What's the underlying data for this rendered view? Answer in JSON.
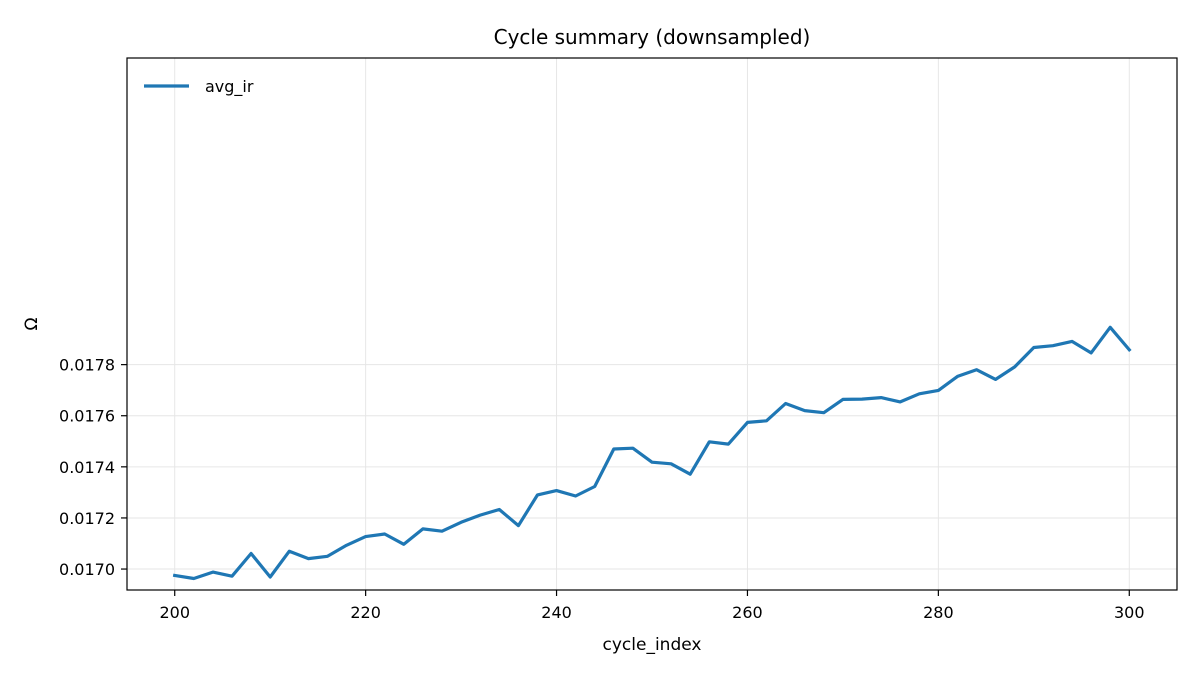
{
  "chart_data": {
    "type": "line",
    "title": "Cycle summary (downsampled)",
    "xlabel": "cycle_index",
    "ylabel": "Ω",
    "xlim": [
      195,
      305
    ],
    "ylim": [
      0.016918,
      0.019
    ],
    "x_ticks": [
      200,
      220,
      240,
      260,
      280,
      300
    ],
    "x_tick_labels": [
      "200",
      "220",
      "240",
      "260",
      "280",
      "300"
    ],
    "y_ticks": [
      0.017,
      0.0172,
      0.0174,
      0.0176,
      0.0178
    ],
    "y_tick_labels": [
      "0.0170",
      "0.0172",
      "0.0174",
      "0.0176",
      "0.0178"
    ],
    "grid": true,
    "legend_position": "top-left",
    "series": [
      {
        "name": "avg_ir",
        "color": "#1f77b4",
        "x": [
          200,
          202,
          204,
          206,
          208,
          210,
          212,
          214,
          216,
          218,
          220,
          222,
          224,
          226,
          228,
          230,
          232,
          234,
          236,
          238,
          240,
          242,
          244,
          246,
          248,
          250,
          252,
          254,
          256,
          258,
          260,
          262,
          264,
          266,
          268,
          270,
          272,
          274,
          276,
          278,
          280,
          282,
          284,
          286,
          288,
          290,
          292,
          294,
          296,
          298,
          300
        ],
        "y": [
          0.016975,
          0.016963,
          0.016988,
          0.016972,
          0.017061,
          0.016969,
          0.01707,
          0.017041,
          0.01705,
          0.017093,
          0.017127,
          0.017137,
          0.017097,
          0.017157,
          0.017148,
          0.017183,
          0.017211,
          0.017233,
          0.01717,
          0.01729,
          0.017307,
          0.017286,
          0.017323,
          0.01747,
          0.017473,
          0.017418,
          0.017412,
          0.017371,
          0.017498,
          0.017489,
          0.017574,
          0.01758,
          0.017648,
          0.01762,
          0.017612,
          0.017664,
          0.017665,
          0.017671,
          0.017654,
          0.017686,
          0.017699,
          0.017754,
          0.01778,
          0.017742,
          0.017791,
          0.017867,
          0.017874,
          0.017891,
          0.017846,
          0.017946,
          0.017858
        ]
      }
    ]
  }
}
